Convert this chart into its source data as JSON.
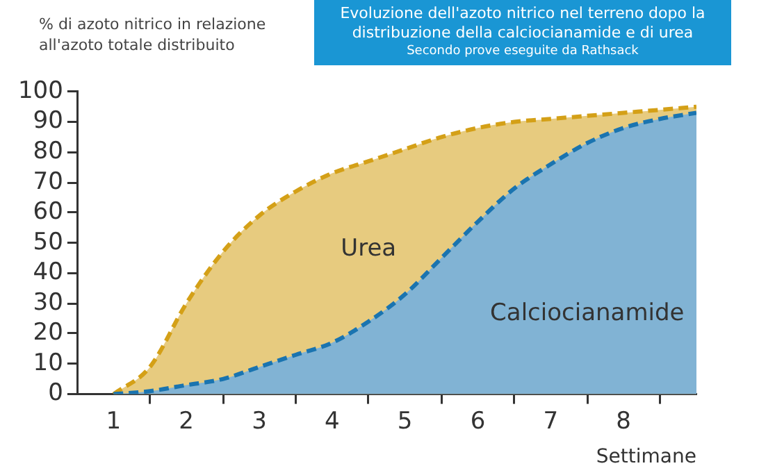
{
  "chart_data": {
    "type": "area",
    "title": "Evoluzione dell'azoto nitrico nel terreno dopo la distribuzione della calciocianamide e di urea",
    "subtitle": "Secondo prove eseguite da Rathsack",
    "ylabel": "% di azoto nitrico in relazione all'azoto totale distribuito",
    "xlabel": "Settimane",
    "x": [
      1,
      1.5,
      2,
      2.5,
      3,
      3.5,
      4,
      4.5,
      5,
      5.5,
      6,
      6.5,
      7,
      7.5,
      8,
      8.5,
      9
    ],
    "series": [
      {
        "name": "Urea",
        "color": "#d4a017",
        "values": [
          0,
          9,
          30,
          47,
          59,
          67,
          73,
          77,
          81,
          85,
          88,
          90,
          91,
          92,
          93,
          94,
          95
        ]
      },
      {
        "name": "Calciocianamide",
        "color": "#1a74b0",
        "values": [
          0,
          1,
          3,
          5,
          9,
          13,
          17,
          24,
          33,
          45,
          57,
          68,
          76,
          83,
          88,
          91,
          93
        ]
      }
    ],
    "xlim": [
      0.5,
      9
    ],
    "xticks": [
      1,
      {
        "value": 1.5,
        "label": null
      },
      2,
      {
        "value": 2.5,
        "label": null
      },
      3,
      {
        "value": 3.5,
        "label": null
      },
      4,
      {
        "value": 4.5,
        "label": null
      },
      5,
      {
        "value": 5.5,
        "label": null
      },
      6,
      {
        "value": 6.5,
        "label": null
      },
      7,
      {
        "value": 7.5,
        "label": null
      },
      8,
      {
        "value": 8.5,
        "label": null
      }
    ],
    "ylim": [
      0,
      100
    ],
    "yticks": [
      0,
      10,
      20,
      30,
      40,
      50,
      60,
      70,
      80,
      90,
      100
    ],
    "grid": false,
    "legend": false,
    "marker": "none",
    "line_style": "dashed"
  }
}
